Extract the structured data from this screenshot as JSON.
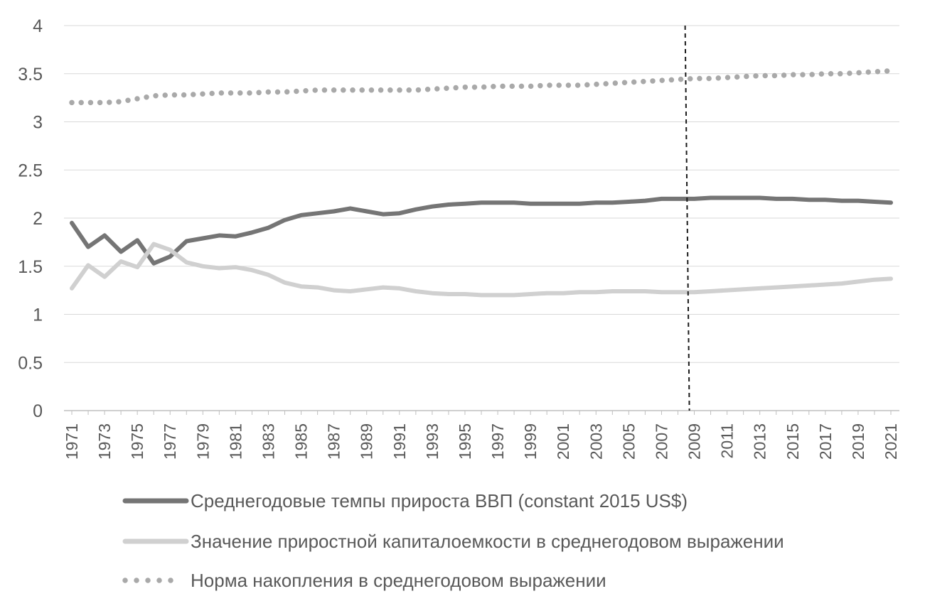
{
  "chart_data": {
    "type": "line",
    "title": "",
    "xlabel": "",
    "ylabel": "",
    "ylim": [
      0,
      4
    ],
    "yticks": [
      "0",
      "0.5",
      "1",
      "1.5",
      "2",
      "2.5",
      "3",
      "3.5",
      "4"
    ],
    "x_start": 1971,
    "x_end": 2021,
    "xtick_labels": [
      "1971",
      "1973",
      "1975",
      "1977",
      "1979",
      "1981",
      "1983",
      "1985",
      "1987",
      "1989",
      "1991",
      "1993",
      "1995",
      "1997",
      "1999",
      "2001",
      "2003",
      "2005",
      "2007",
      "2009",
      "2011",
      "2013",
      "2015",
      "2017",
      "2019",
      "2021"
    ],
    "grid": true,
    "legend_position": "bottom",
    "vertical_marker": {
      "x": 2008.7,
      "style": "dashed"
    },
    "series": [
      {
        "name": "Среднегодовые темпы прироста ВВП (constant 2015 US$)",
        "style": "solid",
        "color": "#757575",
        "values": [
          1.95,
          1.7,
          1.82,
          1.65,
          1.77,
          1.53,
          1.6,
          1.76,
          1.79,
          1.82,
          1.81,
          1.85,
          1.9,
          1.98,
          2.03,
          2.05,
          2.07,
          2.1,
          2.07,
          2.04,
          2.05,
          2.09,
          2.12,
          2.14,
          2.15,
          2.16,
          2.16,
          2.16,
          2.15,
          2.15,
          2.15,
          2.15,
          2.16,
          2.16,
          2.17,
          2.18,
          2.2,
          2.2,
          2.2,
          2.21,
          2.21,
          2.21,
          2.21,
          2.2,
          2.2,
          2.19,
          2.19,
          2.18,
          2.18,
          2.17,
          2.16
        ]
      },
      {
        "name": "Значение приростной капиталоемкости в среднегодовом выражении",
        "style": "solid",
        "color": "#d0d0d0",
        "values": [
          1.27,
          1.51,
          1.39,
          1.55,
          1.49,
          1.73,
          1.67,
          1.54,
          1.5,
          1.48,
          1.49,
          1.46,
          1.41,
          1.33,
          1.29,
          1.28,
          1.25,
          1.24,
          1.26,
          1.28,
          1.27,
          1.24,
          1.22,
          1.21,
          1.21,
          1.2,
          1.2,
          1.2,
          1.21,
          1.22,
          1.22,
          1.23,
          1.23,
          1.24,
          1.24,
          1.24,
          1.23,
          1.23,
          1.23,
          1.24,
          1.25,
          1.26,
          1.27,
          1.28,
          1.29,
          1.3,
          1.31,
          1.32,
          1.34,
          1.36,
          1.37
        ]
      },
      {
        "name": "Норма накопления в среднегодовом выражении",
        "style": "dotted",
        "color": "#a9a9a9",
        "values": [
          3.2,
          3.2,
          3.2,
          3.21,
          3.24,
          3.27,
          3.28,
          3.28,
          3.29,
          3.3,
          3.3,
          3.3,
          3.31,
          3.31,
          3.32,
          3.33,
          3.33,
          3.33,
          3.33,
          3.33,
          3.33,
          3.33,
          3.34,
          3.35,
          3.36,
          3.36,
          3.37,
          3.37,
          3.37,
          3.38,
          3.38,
          3.38,
          3.39,
          3.4,
          3.41,
          3.42,
          3.43,
          3.44,
          3.45,
          3.45,
          3.46,
          3.47,
          3.48,
          3.48,
          3.49,
          3.49,
          3.5,
          3.5,
          3.51,
          3.52,
          3.53
        ]
      }
    ]
  }
}
